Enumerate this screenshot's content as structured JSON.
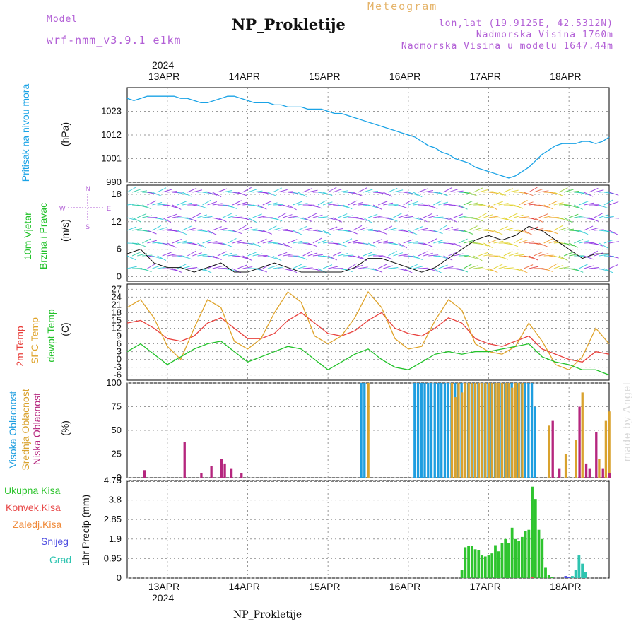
{
  "header": {
    "model_label": "Model",
    "model_name": "wrf-nmm_v3.9.1 e1km",
    "meteogram_label": "Meteogram",
    "station": "NP_Prokletije",
    "lonlat": "lon,lat (19.9125E, 42.5312N)",
    "altitude": "Nadmorska Visina 1760m",
    "model_altitude": "Nadmorska Visina u modelu 1647.44m",
    "watermark": "made by Angel",
    "footer_station": "NP_Prokletije"
  },
  "dates": {
    "year": "2024",
    "labels": [
      "13APR",
      "14APR",
      "15APR",
      "16APR",
      "17APR",
      "18APR"
    ]
  },
  "panels": {
    "pressure": {
      "ylabel_1": "Pritisak na nivou mora",
      "ylabel_2": "(hPa)"
    },
    "wind": {
      "ylabel_1": "10m Vjetar",
      "ylabel_2": "Brzina i Pravac",
      "ylabel_3": "(m/s)",
      "compass": {
        "n": "N",
        "s": "S",
        "w": "W",
        "e": "E"
      }
    },
    "temp": {
      "ylabel_1": "2m Temp",
      "ylabel_2": "SFC Temp",
      "ylabel_3": "dewpt Temp",
      "ylabel_4": "(C)"
    },
    "cloud": {
      "ylabel_1": "Visoka Oblacnost",
      "ylabel_2": "Srednja Oblacnost",
      "ylabel_3": "Niska Oblacnost",
      "ylabel_4": "(%)"
    },
    "precip": {
      "ylabel_1": "1hr Precip (mm)",
      "legend": [
        "Ukupna Kisa",
        "Konvek.Kisa",
        "Zaledj.Kisa",
        "Snijeg",
        "Grad"
      ]
    }
  },
  "colors": {
    "pressure": "#1aa3e6",
    "temp2m": "#e8403c",
    "sfc": "#dfa32a",
    "dewpt": "#22c22a",
    "cloud_high": "#1e9ee0",
    "cloud_mid": "#d9a22e",
    "cloud_low": "#b5267e",
    "precip_total": "#2ec42e",
    "precip_conv": "#e84a4a",
    "precip_frz": "#f08a3a",
    "precip_snow": "#4a4ae0",
    "precip_hail": "#2ec4b0",
    "wind_purple": "#8a2be2",
    "wind_cyan": "#22c8d8"
  },
  "chart_data": [
    {
      "type": "line",
      "name": "pressure",
      "ylabel": "Pritisak na nivou mora (hPa)",
      "x_start": "2024-04-12T12:00",
      "x_end": "2024-04-18T12:00",
      "ylim": [
        990,
        1034
      ],
      "yticks": [
        990,
        1001,
        1012,
        1023
      ],
      "series": [
        {
          "name": "",
          "x": [
            0,
            2,
            4,
            6,
            8,
            10,
            12,
            14,
            16,
            18,
            20,
            22,
            24,
            26,
            28,
            30,
            32,
            34,
            36,
            38,
            40,
            42,
            44,
            46,
            48,
            50,
            52,
            54,
            56,
            58,
            60,
            62,
            64,
            66,
            68,
            70,
            72,
            74,
            76,
            78,
            80,
            82,
            84,
            86,
            88,
            90,
            92,
            94,
            96,
            98,
            100,
            102,
            104,
            106,
            108,
            110,
            112,
            114,
            116,
            118,
            120,
            122,
            124,
            126,
            128,
            130,
            132,
            134,
            136,
            138,
            140,
            142,
            144
          ],
          "y": [
            1029,
            1028,
            1029,
            1030,
            1030,
            1030,
            1030,
            1030,
            1029,
            1029,
            1028,
            1027,
            1027,
            1028,
            1029,
            1030,
            1030,
            1029,
            1028,
            1027,
            1027,
            1027,
            1026,
            1026,
            1025,
            1025,
            1025,
            1024,
            1024,
            1024,
            1023,
            1022,
            1022,
            1021,
            1020,
            1019,
            1018,
            1017,
            1016,
            1015,
            1014,
            1013,
            1012,
            1011,
            1009,
            1007,
            1006,
            1004,
            1003,
            1001,
            1000,
            999,
            997,
            996,
            995,
            994,
            993,
            992,
            993,
            995,
            997,
            1000,
            1003,
            1005,
            1007,
            1008,
            1008,
            1008,
            1009,
            1009,
            1008,
            1009,
            1011
          ]
        }
      ]
    },
    {
      "type": "line",
      "name": "wind",
      "ylabel": "10m Vjetar Brzina i Pravac (m/s)",
      "ylim": [
        -1,
        20
      ],
      "yticks": [
        0,
        6,
        12,
        18
      ],
      "series": [
        {
          "name": "",
          "x": [
            0,
            4,
            8,
            12,
            16,
            20,
            24,
            28,
            32,
            36,
            40,
            44,
            48,
            52,
            56,
            60,
            64,
            68,
            72,
            76,
            80,
            84,
            88,
            92,
            96,
            100,
            104,
            108,
            112,
            116,
            120,
            124,
            128,
            132,
            136,
            140,
            144
          ],
          "y": [
            5,
            6,
            3,
            2,
            2,
            1,
            2,
            3,
            1,
            1,
            2,
            3,
            2,
            1,
            1,
            1,
            1,
            2,
            4,
            4,
            3,
            2,
            1,
            2,
            4,
            6,
            8,
            9,
            8,
            9,
            11,
            10,
            8,
            6,
            4,
            5,
            5
          ]
        }
      ]
    },
    {
      "type": "line",
      "name": "temperature",
      "ylabel": "(C)",
      "ylim": [
        -8,
        29
      ],
      "yticks": [
        -6,
        -3,
        0,
        3,
        6,
        9,
        12,
        15,
        18,
        21,
        24,
        27
      ],
      "series": [
        {
          "name": "2m Temp",
          "x": [
            0,
            4,
            8,
            12,
            16,
            20,
            24,
            28,
            32,
            36,
            40,
            44,
            48,
            52,
            56,
            60,
            64,
            68,
            72,
            76,
            80,
            84,
            88,
            92,
            96,
            100,
            104,
            108,
            112,
            116,
            120,
            124,
            128,
            132,
            136,
            140,
            144
          ],
          "y": [
            14,
            15,
            12,
            8,
            7,
            9,
            14,
            16,
            12,
            8,
            8,
            10,
            15,
            18,
            14,
            10,
            9,
            11,
            15,
            18,
            12,
            10,
            9,
            12,
            16,
            14,
            8,
            6,
            5,
            7,
            9,
            4,
            2,
            0,
            -1,
            3,
            2
          ]
        },
        {
          "name": "SFC Temp",
          "x": [
            0,
            4,
            8,
            12,
            16,
            20,
            24,
            28,
            32,
            36,
            40,
            44,
            48,
            52,
            56,
            60,
            64,
            68,
            72,
            76,
            80,
            84,
            88,
            92,
            96,
            100,
            104,
            108,
            112,
            116,
            120,
            124,
            128,
            132,
            136,
            140,
            144
          ],
          "y": [
            20,
            23,
            16,
            5,
            0,
            12,
            23,
            20,
            7,
            4,
            8,
            18,
            26,
            22,
            9,
            6,
            9,
            16,
            26,
            20,
            8,
            4,
            5,
            15,
            23,
            19,
            6,
            3,
            2,
            5,
            14,
            7,
            -2,
            -4,
            1,
            12,
            6
          ]
        },
        {
          "name": "dewpt Temp",
          "x": [
            0,
            4,
            8,
            12,
            16,
            20,
            24,
            28,
            32,
            36,
            40,
            44,
            48,
            52,
            56,
            60,
            64,
            68,
            72,
            76,
            80,
            84,
            88,
            92,
            96,
            100,
            104,
            108,
            112,
            116,
            120,
            124,
            128,
            132,
            136,
            140,
            144
          ],
          "y": [
            3,
            6,
            2,
            -2,
            1,
            4,
            6,
            7,
            3,
            -1,
            1,
            3,
            5,
            4,
            0,
            -4,
            -1,
            2,
            4,
            0,
            -3,
            -4,
            -1,
            2,
            3,
            2,
            3,
            3,
            4,
            5,
            6,
            1,
            -1,
            -2,
            -4,
            -4,
            -6
          ]
        }
      ]
    },
    {
      "type": "bar",
      "name": "cloud",
      "ylabel": "(%)",
      "ylim": [
        0,
        100
      ],
      "yticks": [
        0,
        25,
        50,
        75,
        100
      ],
      "series": [
        {
          "name": "Visoka Oblacnost",
          "x": [
            70,
            71,
            86,
            87,
            88,
            89,
            90,
            91,
            92,
            93,
            94,
            95,
            96,
            97,
            98,
            99,
            100,
            101,
            102,
            103,
            104,
            105,
            106,
            107,
            108,
            109,
            110,
            111,
            112,
            113,
            114,
            115,
            116,
            117,
            118,
            119,
            120,
            121,
            122
          ],
          "y": [
            100,
            100,
            100,
            100,
            100,
            100,
            100,
            100,
            100,
            100,
            100,
            100,
            100,
            100,
            100,
            100,
            100,
            100,
            100,
            100,
            100,
            100,
            100,
            100,
            100,
            100,
            100,
            100,
            100,
            100,
            100,
            100,
            100,
            100,
            100,
            100,
            100,
            100,
            75
          ]
        },
        {
          "name": "Srednja Oblacnost",
          "x": [
            72,
            97,
            98,
            99,
            100,
            101,
            102,
            103,
            104,
            105,
            106,
            107,
            108,
            109,
            110,
            111,
            112,
            113,
            114,
            115,
            116,
            117,
            118,
            126,
            131,
            134,
            136,
            141,
            143,
            144
          ],
          "y": [
            100,
            100,
            85,
            100,
            90,
            100,
            100,
            100,
            100,
            100,
            100,
            100,
            100,
            100,
            100,
            100,
            100,
            100,
            100,
            95,
            100,
            100,
            100,
            55,
            25,
            40,
            90,
            20,
            60,
            70
          ]
        },
        {
          "name": "Niska Oblacnost",
          "x": [
            5,
            17,
            22,
            25,
            28,
            29,
            31,
            34,
            127,
            129,
            135,
            137,
            138,
            140,
            142,
            144
          ],
          "y": [
            8,
            38,
            5,
            12,
            20,
            15,
            10,
            5,
            60,
            10,
            75,
            15,
            10,
            48,
            10,
            5
          ]
        }
      ]
    },
    {
      "type": "bar",
      "name": "precipitation",
      "ylabel": "1hr Precip (mm)",
      "ylim": [
        0,
        4.75
      ],
      "yticks": [
        0,
        0.95,
        1.9,
        2.85,
        3.8,
        4.75
      ],
      "series": [
        {
          "name": "Ukupna Kisa",
          "x": [
            100,
            101,
            102,
            103,
            104,
            105,
            106,
            107,
            108,
            109,
            110,
            111,
            112,
            113,
            114,
            115,
            116,
            117,
            118,
            119,
            120,
            121,
            122,
            123,
            124,
            125,
            126,
            127
          ],
          "y": [
            0.4,
            1.5,
            1.55,
            1.55,
            1.4,
            1.35,
            1.1,
            1.05,
            1.1,
            1.2,
            1.6,
            1.3,
            1.7,
            1.9,
            1.7,
            2.45,
            1.9,
            1.8,
            2.0,
            2.3,
            2.35,
            4.45,
            3.85,
            2.35,
            1.9,
            0.5,
            0.15,
            0.05
          ]
        },
        {
          "name": "Konvek.Kisa",
          "x": [
            121
          ],
          "y": [
            0.05
          ]
        },
        {
          "name": "Zaledj.Kisa",
          "x": [],
          "y": []
        },
        {
          "name": "Snijeg",
          "x": [
            131,
            132
          ],
          "y": [
            0.1,
            0.05
          ]
        },
        {
          "name": "Grad",
          "x": [
            133,
            134,
            135,
            136,
            137
          ],
          "y": [
            0.1,
            0.4,
            1.1,
            0.7,
            0.3
          ]
        }
      ]
    }
  ]
}
